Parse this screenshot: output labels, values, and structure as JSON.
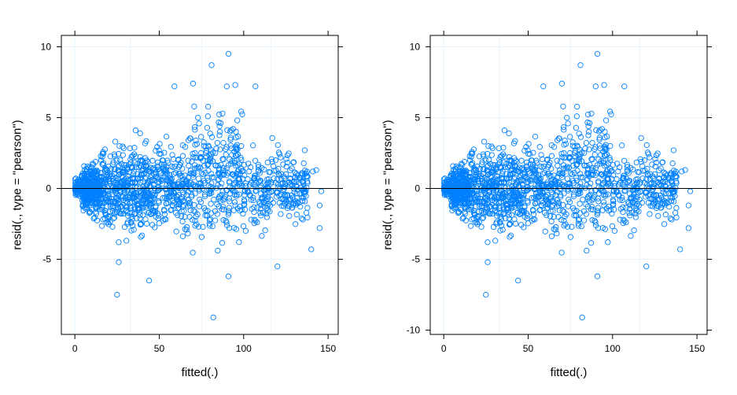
{
  "colors": {
    "points": "#0080ff",
    "refline": "#000000",
    "grid": "#e6f5ff",
    "frame": "#000000"
  },
  "chart_data": [
    {
      "type": "scatter",
      "xlabel": "fitted(.)",
      "ylabel": "resid(., type = \"pearson\")",
      "xlim": [
        -8,
        156
      ],
      "ylim": [
        -10.3,
        10.8
      ],
      "xticks": [
        0,
        50,
        100,
        150
      ],
      "yticks": [
        -5,
        0,
        5,
        10
      ],
      "ytick_labels": [
        "-5",
        "0",
        "5",
        "10"
      ],
      "reference_line_y": 0,
      "grid": true,
      "marker": "open-circle",
      "notable_points": [
        {
          "x": 91,
          "y": 9.5
        },
        {
          "x": 81,
          "y": 8.7
        },
        {
          "x": 70,
          "y": 7.4
        },
        {
          "x": 90,
          "y": 7.2
        },
        {
          "x": 107,
          "y": 7.2
        },
        {
          "x": 59,
          "y": 7.2
        },
        {
          "x": 95,
          "y": 7.3
        },
        {
          "x": 36,
          "y": 4.1
        },
        {
          "x": 26,
          "y": -5.2
        },
        {
          "x": 25,
          "y": -7.5
        },
        {
          "x": 44,
          "y": -6.5
        },
        {
          "x": 82,
          "y": -9.1
        },
        {
          "x": 91,
          "y": -6.2
        },
        {
          "x": 120,
          "y": -5.5
        },
        {
          "x": 140,
          "y": -4.3
        },
        {
          "x": 143,
          "y": 1.3
        },
        {
          "x": 146,
          "y": -0.2
        },
        {
          "x": 145,
          "y": -1.2
        },
        {
          "x": 145,
          "y": -2.8
        },
        {
          "x": 141,
          "y": 1.2
        }
      ],
      "clusters": [
        {
          "x": [
            0,
            4
          ],
          "y_sd": 0.25,
          "n": 90
        },
        {
          "x": [
            4,
            16
          ],
          "y_sd": 0.8,
          "n": 320
        },
        {
          "x": [
            16,
            45
          ],
          "y_sd": 1.3,
          "n": 420
        },
        {
          "x": [
            45,
            68
          ],
          "y_sd": 1.4,
          "n": 230
        },
        {
          "x": [
            68,
            100
          ],
          "y_sd": 2.0,
          "n": 300
        },
        {
          "x": [
            100,
            138
          ],
          "y_sd": 1.2,
          "n": 270
        }
      ]
    },
    {
      "type": "scatter",
      "xlabel": "fitted(.)",
      "ylabel": "resid(., type = \"pearson\")",
      "xlim": [
        -8,
        156
      ],
      "ylim": [
        -10.3,
        10.8
      ],
      "xticks": [
        0,
        50,
        100,
        150
      ],
      "yticks": [
        -10,
        -5,
        0,
        5,
        10
      ],
      "ytick_labels": [
        "-10",
        "-5",
        "0",
        "5",
        "10"
      ],
      "reference_line_y": 0,
      "grid": true,
      "marker": "open-circle",
      "notable_points": [
        {
          "x": 91,
          "y": 9.5
        },
        {
          "x": 81,
          "y": 8.7
        },
        {
          "x": 70,
          "y": 7.4
        },
        {
          "x": 90,
          "y": 7.2
        },
        {
          "x": 107,
          "y": 7.2
        },
        {
          "x": 59,
          "y": 7.2
        },
        {
          "x": 95,
          "y": 7.3
        },
        {
          "x": 36,
          "y": 4.1
        },
        {
          "x": 26,
          "y": -5.2
        },
        {
          "x": 25,
          "y": -7.5
        },
        {
          "x": 44,
          "y": -6.5
        },
        {
          "x": 82,
          "y": -9.1
        },
        {
          "x": 91,
          "y": -6.2
        },
        {
          "x": 120,
          "y": -5.5
        },
        {
          "x": 140,
          "y": -4.3
        },
        {
          "x": 143,
          "y": 1.3
        },
        {
          "x": 146,
          "y": -0.2
        },
        {
          "x": 145,
          "y": -1.2
        },
        {
          "x": 145,
          "y": -2.8
        },
        {
          "x": 141,
          "y": 1.2
        }
      ],
      "clusters": [
        {
          "x": [
            0,
            4
          ],
          "y_sd": 0.25,
          "n": 90
        },
        {
          "x": [
            4,
            16
          ],
          "y_sd": 0.8,
          "n": 320
        },
        {
          "x": [
            16,
            45
          ],
          "y_sd": 1.3,
          "n": 420
        },
        {
          "x": [
            45,
            68
          ],
          "y_sd": 1.4,
          "n": 230
        },
        {
          "x": [
            68,
            100
          ],
          "y_sd": 2.0,
          "n": 300
        },
        {
          "x": [
            100,
            138
          ],
          "y_sd": 1.2,
          "n": 270
        }
      ]
    }
  ]
}
